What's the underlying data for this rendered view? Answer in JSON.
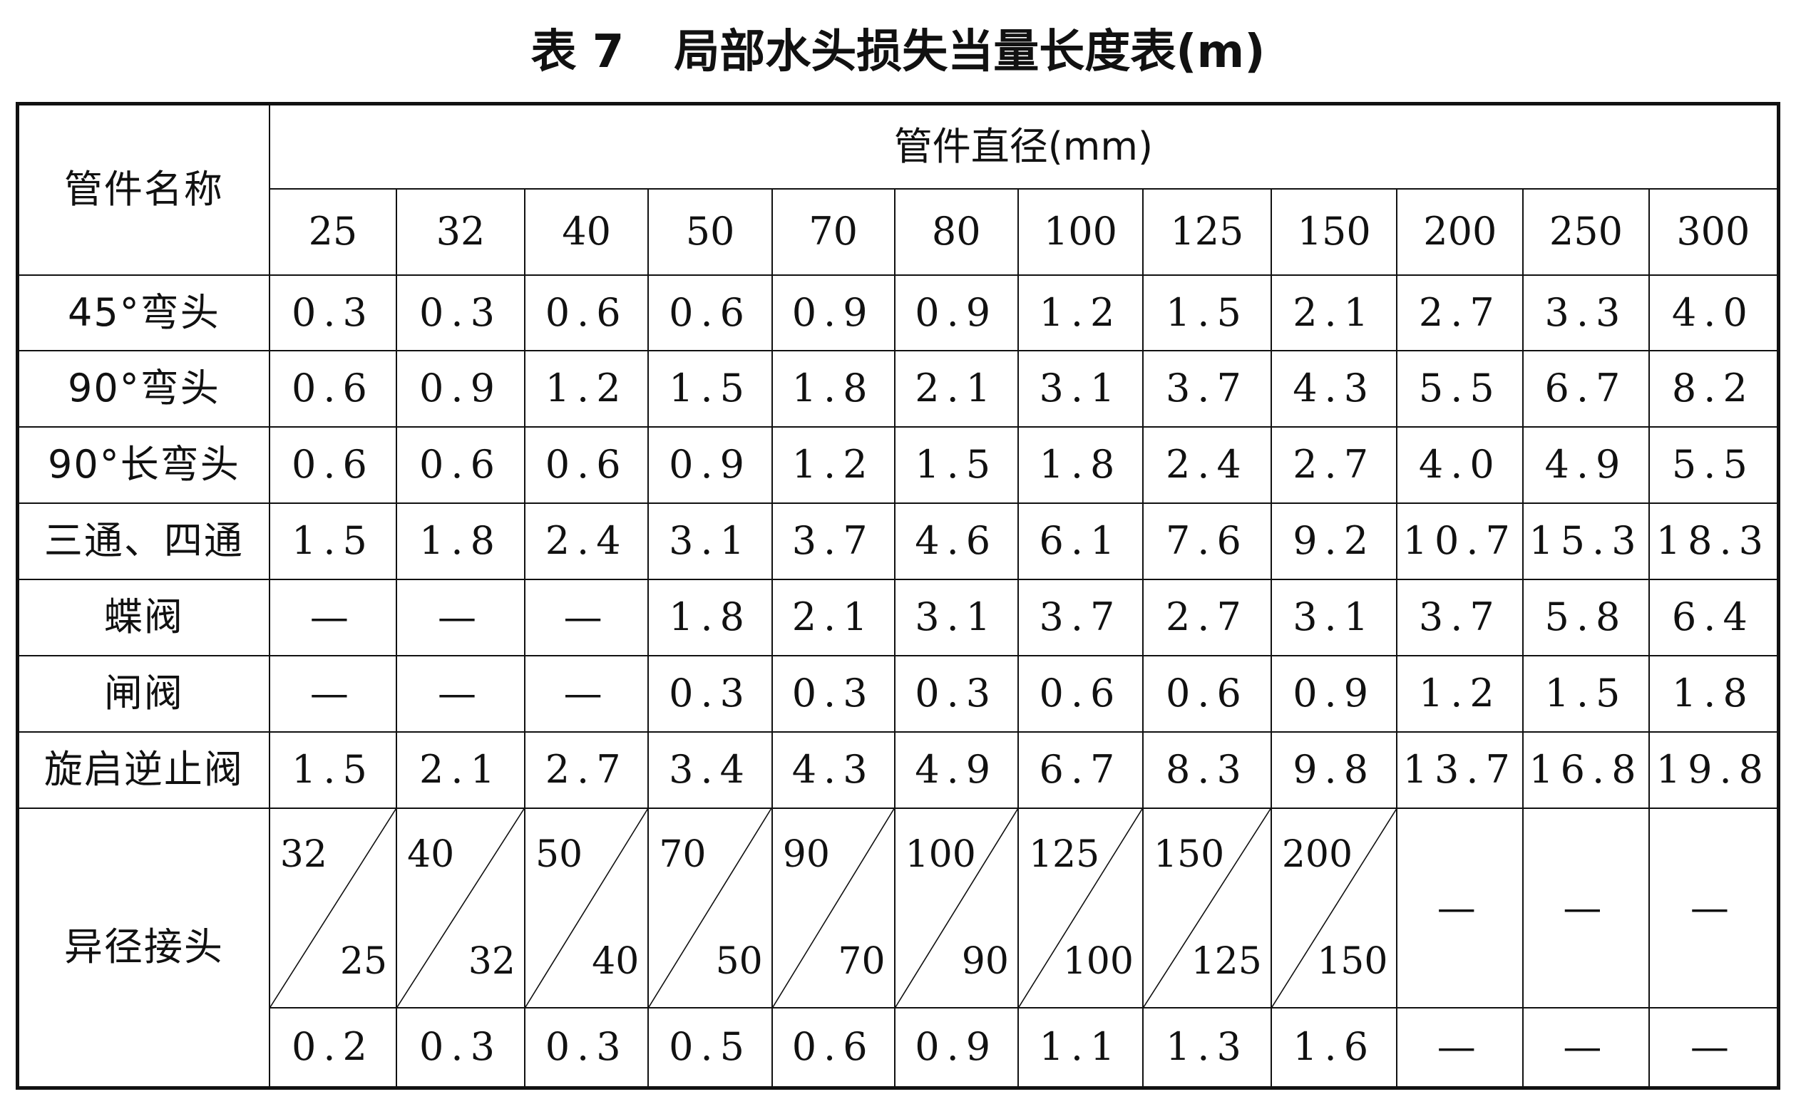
{
  "title": {
    "number": "表 7",
    "text": "局部水头损失当量长度表(m)"
  },
  "header": {
    "name_label": "管件名称",
    "diameter_label": "管件直径(mm)",
    "diameters": [
      "25",
      "32",
      "40",
      "50",
      "70",
      "80",
      "100",
      "125",
      "150",
      "200",
      "250",
      "300"
    ]
  },
  "rows": [
    {
      "name": "45°弯头",
      "values": [
        "0.3",
        "0.3",
        "0.6",
        "0.6",
        "0.9",
        "0.9",
        "1.2",
        "1.5",
        "2.1",
        "2.7",
        "3.3",
        "4.0"
      ]
    },
    {
      "name": "90°弯头",
      "values": [
        "0.6",
        "0.9",
        "1.2",
        "1.5",
        "1.8",
        "2.1",
        "3.1",
        "3.7",
        "4.3",
        "5.5",
        "6.7",
        "8.2"
      ]
    },
    {
      "name": "90°长弯头",
      "values": [
        "0.6",
        "0.6",
        "0.6",
        "0.9",
        "1.2",
        "1.5",
        "1.8",
        "2.4",
        "2.7",
        "4.0",
        "4.9",
        "5.5"
      ]
    },
    {
      "name": "三通、四通",
      "values": [
        "1.5",
        "1.8",
        "2.4",
        "3.1",
        "3.7",
        "4.6",
        "6.1",
        "7.6",
        "9.2",
        "10.7",
        "15.3",
        "18.3"
      ]
    },
    {
      "name": "蝶阀",
      "values": [
        "—",
        "—",
        "—",
        "1.8",
        "2.1",
        "3.1",
        "3.7",
        "2.7",
        "3.1",
        "3.7",
        "5.8",
        "6.4"
      ]
    },
    {
      "name": "闸阀",
      "values": [
        "—",
        "—",
        "—",
        "0.3",
        "0.3",
        "0.3",
        "0.6",
        "0.6",
        "0.9",
        "1.2",
        "1.5",
        "1.8"
      ]
    },
    {
      "name": "旋启逆止阀",
      "values": [
        "1.5",
        "2.1",
        "2.7",
        "3.4",
        "4.3",
        "4.9",
        "6.7",
        "8.3",
        "9.8",
        "13.7",
        "16.8",
        "19.8"
      ]
    }
  ],
  "reducer": {
    "name": "异径接头",
    "pairs": [
      {
        "top": "32",
        "bottom": "25"
      },
      {
        "top": "40",
        "bottom": "32"
      },
      {
        "top": "50",
        "bottom": "40"
      },
      {
        "top": "70",
        "bottom": "50"
      },
      {
        "top": "90",
        "bottom": "70"
      },
      {
        "top": "100",
        "bottom": "90"
      },
      {
        "top": "125",
        "bottom": "100"
      },
      {
        "top": "150",
        "bottom": "125"
      },
      {
        "top": "200",
        "bottom": "150"
      }
    ],
    "empty_marks": [
      "—",
      "—",
      "—"
    ],
    "values": [
      "0.2",
      "0.3",
      "0.3",
      "0.5",
      "0.6",
      "0.9",
      "1.1",
      "1.3",
      "1.6",
      "—",
      "—",
      "—"
    ]
  }
}
